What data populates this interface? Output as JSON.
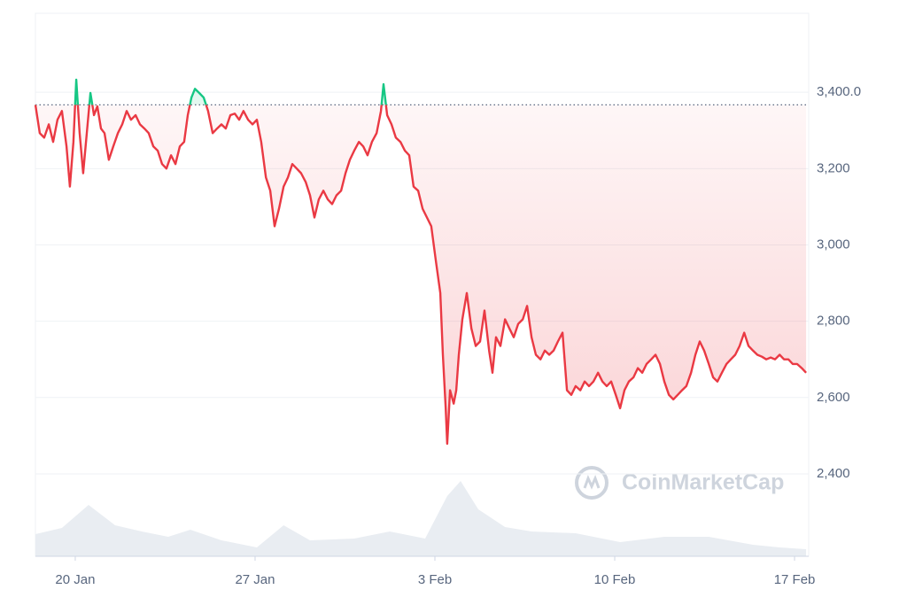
{
  "chart_data": {
    "type": "line",
    "x": [
      18.45,
      18.62,
      18.79,
      18.97,
      19.14,
      19.31,
      19.48,
      19.66,
      19.79,
      19.93,
      20.04,
      20.17,
      20.31,
      20.45,
      20.59,
      20.73,
      20.86,
      21.0,
      21.14,
      21.31,
      21.48,
      21.66,
      21.83,
      22.0,
      22.17,
      22.35,
      22.52,
      22.69,
      22.86,
      23.04,
      23.21,
      23.38,
      23.55,
      23.73,
      23.9,
      24.07,
      24.24,
      24.38,
      24.52,
      24.66,
      24.83,
      25.0,
      25.17,
      25.35,
      25.52,
      25.69,
      25.86,
      26.04,
      26.21,
      26.38,
      26.55,
      26.73,
      26.9,
      27.07,
      27.24,
      27.42,
      27.59,
      27.76,
      27.93,
      28.11,
      28.28,
      28.45,
      28.62,
      28.79,
      28.97,
      29.14,
      29.31,
      29.48,
      29.66,
      29.83,
      30.0,
      30.17,
      30.35,
      30.52,
      30.69,
      30.86,
      31.04,
      31.21,
      31.38,
      31.55,
      31.73,
      31.9,
      32.0,
      32.14,
      32.31,
      32.48,
      32.66,
      32.83,
      33.0,
      33.17,
      33.35,
      33.52,
      33.69,
      33.86,
      34.04,
      34.21,
      34.31,
      34.42,
      34.48,
      34.59,
      34.73,
      34.83,
      34.93,
      35.07,
      35.24,
      35.42,
      35.59,
      35.76,
      35.93,
      36.11,
      36.24,
      36.38,
      36.55,
      36.73,
      36.9,
      37.07,
      37.24,
      37.42,
      37.59,
      37.76,
      37.93,
      38.11,
      38.28,
      38.45,
      38.62,
      38.79,
      38.97,
      39.14,
      39.31,
      39.48,
      39.66,
      39.83,
      40.0,
      40.17,
      40.35,
      40.52,
      40.69,
      40.86,
      41.04,
      41.21,
      41.38,
      41.55,
      41.73,
      41.9,
      42.07,
      42.24,
      42.42,
      42.59,
      42.76,
      42.93,
      43.11,
      43.28,
      43.45,
      43.62,
      43.79,
      43.97,
      44.14,
      44.31,
      44.48,
      44.66,
      44.83,
      45.0,
      45.17,
      45.35,
      45.52,
      45.69,
      45.86,
      46.04,
      46.21,
      46.38,
      46.55,
      46.73,
      46.9,
      47.07,
      47.24,
      47.42,
      47.59,
      47.76,
      47.93,
      48.1,
      48.28,
      48.45
    ],
    "values": [
      3367,
      3293,
      3281,
      3316,
      3270,
      3328,
      3351,
      3258,
      3153,
      3270,
      3433,
      3293,
      3188,
      3293,
      3398,
      3340,
      3363,
      3305,
      3293,
      3223,
      3258,
      3293,
      3316,
      3351,
      3328,
      3340,
      3316,
      3305,
      3293,
      3258,
      3247,
      3212,
      3200,
      3235,
      3212,
      3258,
      3270,
      3340,
      3386,
      3409,
      3398,
      3386,
      3351,
      3293,
      3305,
      3316,
      3305,
      3340,
      3344,
      3328,
      3351,
      3328,
      3316,
      3328,
      3270,
      3177,
      3142,
      3049,
      3095,
      3153,
      3177,
      3212,
      3200,
      3188,
      3165,
      3130,
      3072,
      3119,
      3142,
      3119,
      3107,
      3130,
      3142,
      3188,
      3223,
      3247,
      3270,
      3258,
      3235,
      3270,
      3293,
      3351,
      3421,
      3340,
      3316,
      3281,
      3270,
      3247,
      3235,
      3153,
      3142,
      3095,
      3072,
      3049,
      2956,
      2874,
      2712,
      2572,
      2479,
      2619,
      2584,
      2619,
      2712,
      2805,
      2874,
      2781,
      2735,
      2747,
      2828,
      2723,
      2665,
      2758,
      2735,
      2805,
      2781,
      2758,
      2793,
      2805,
      2840,
      2758,
      2712,
      2700,
      2723,
      2712,
      2723,
      2747,
      2770,
      2619,
      2607,
      2630,
      2619,
      2642,
      2630,
      2642,
      2665,
      2642,
      2630,
      2642,
      2607,
      2572,
      2619,
      2642,
      2653,
      2677,
      2665,
      2688,
      2700,
      2712,
      2688,
      2642,
      2607,
      2595,
      2607,
      2619,
      2630,
      2665,
      2712,
      2747,
      2723,
      2688,
      2653,
      2642,
      2665,
      2688,
      2700,
      2712,
      2735,
      2770,
      2735,
      2723,
      2712,
      2707,
      2700,
      2705,
      2700,
      2712,
      2700,
      2700,
      2688,
      2688,
      2677,
      2665
    ],
    "baseline": 3367,
    "color_above": "#16c784",
    "color_below": "#ea3943",
    "xlim": [
      18.45,
      48.55
    ],
    "ylim": [
      2184,
      3607
    ],
    "xticks": [
      {
        "value": 20,
        "label": "20 Jan"
      },
      {
        "value": 27,
        "label": "27 Jan"
      },
      {
        "value": 34,
        "label": "3 Feb"
      },
      {
        "value": 41,
        "label": "10 Feb"
      },
      {
        "value": 48,
        "label": "17 Feb"
      }
    ],
    "yticks": [
      {
        "value": 3400,
        "label": "3,400.0"
      },
      {
        "value": 3200,
        "label": "3,200"
      },
      {
        "value": 3000,
        "label": "3,000"
      },
      {
        "value": 2800,
        "label": "2,800"
      },
      {
        "value": 2600,
        "label": "2,600"
      },
      {
        "value": 2400,
        "label": "2,400"
      }
    ],
    "grid": true,
    "volume": {
      "x": [
        18.45,
        19.48,
        20.52,
        21.55,
        22.59,
        23.62,
        24.48,
        25.69,
        27.07,
        28.11,
        29.14,
        30.86,
        32.24,
        33.62,
        34.48,
        35.0,
        35.69,
        36.73,
        37.76,
        39.48,
        41.21,
        42.93,
        44.66,
        46.38,
        47.42,
        48.45
      ],
      "values": [
        25,
        32,
        58,
        35,
        28,
        22,
        30,
        18,
        10,
        35,
        18,
        20,
        28,
        20,
        68,
        85,
        53,
        33,
        28,
        26,
        16,
        22,
        22,
        13,
        10,
        8
      ],
      "ylim": [
        0,
        100
      ],
      "color": "#e9edf2"
    },
    "watermark": "CoinMarketCap"
  }
}
